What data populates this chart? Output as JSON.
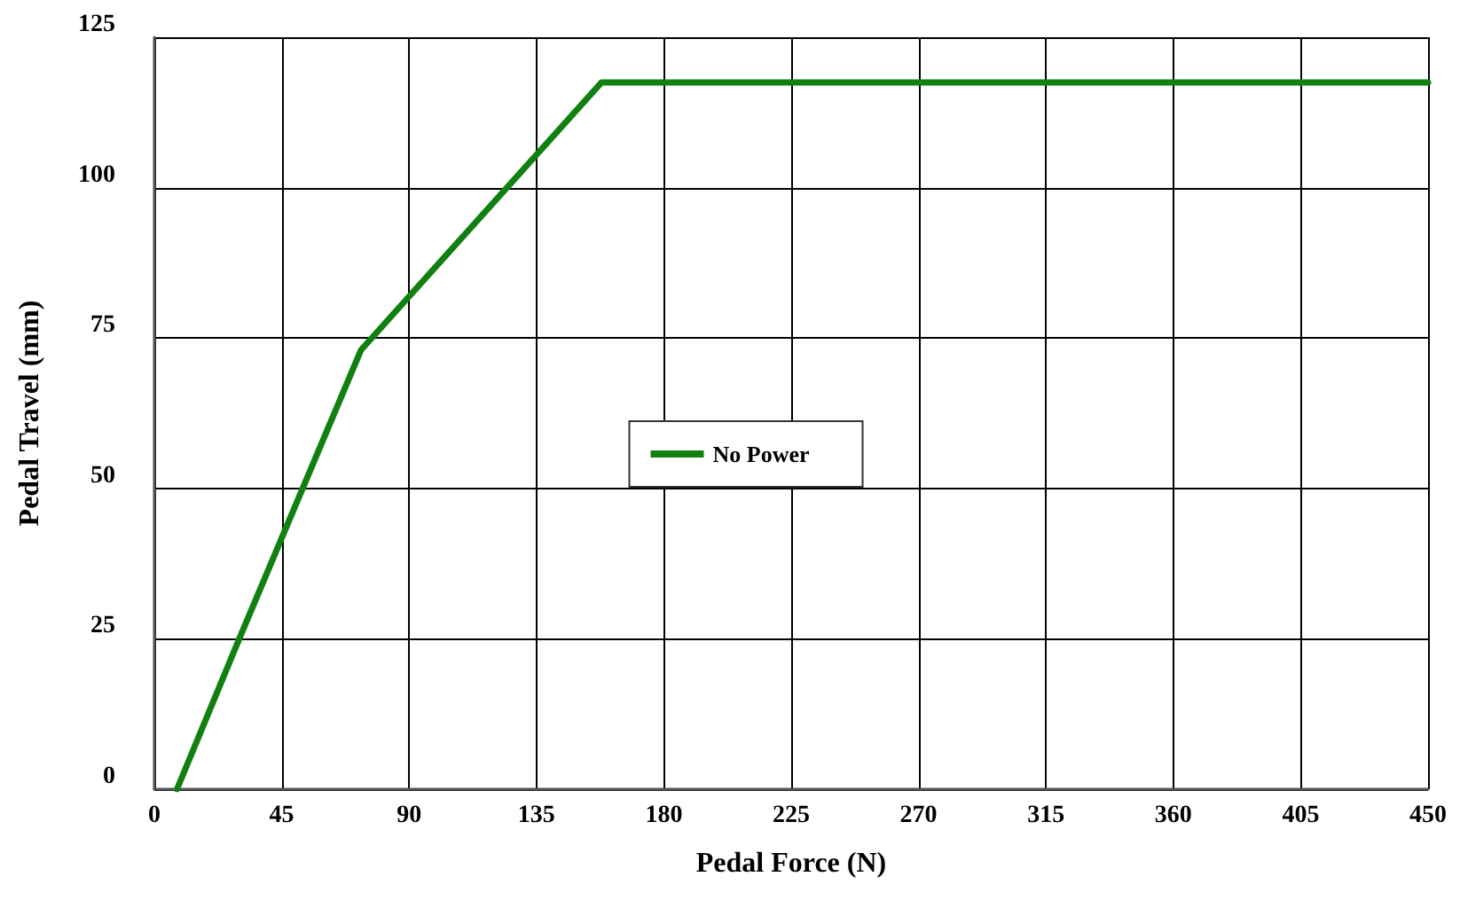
{
  "chart_data": {
    "type": "line",
    "xlabel": "Pedal Force (N)",
    "ylabel": "Pedal Travel (mm)",
    "series": [
      {
        "name": "No Power",
        "color": "#108010",
        "x": [
          8,
          30,
          73,
          158,
          450
        ],
        "values": [
          0,
          25,
          73,
          117.5,
          117.5
        ]
      }
    ],
    "xlim": [
      0,
      450
    ],
    "xticks": [
      0,
      45,
      90,
      135,
      180,
      225,
      270,
      315,
      360,
      405,
      450
    ],
    "ylim": [
      0,
      125
    ],
    "yticks": [
      0,
      25,
      50,
      75,
      100,
      125
    ],
    "grid": true,
    "legend": "center",
    "marker": "none",
    "line_style": "solid"
  }
}
